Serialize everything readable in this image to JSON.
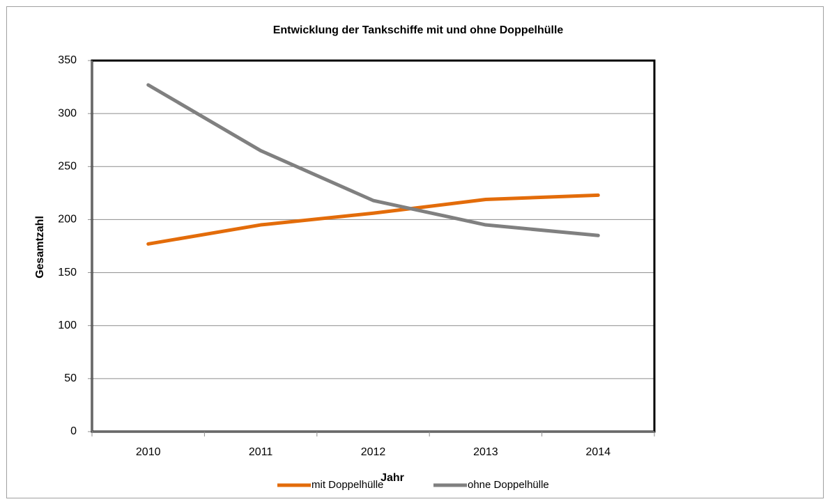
{
  "chart_data": {
    "type": "line",
    "title": "Entwicklung der Tankschiffe mit und ohne Doppelhülle",
    "x_label": "Jahr",
    "y_label": "Gesamtzahl",
    "categories": [
      "2010",
      "2011",
      "2012",
      "2013",
      "2014"
    ],
    "series": [
      {
        "name": "mit Doppelhülle",
        "color": "#e36c0a",
        "values": [
          177,
          195,
          206,
          219,
          223
        ]
      },
      {
        "name": "ohne Doppelhülle",
        "color": "#808080",
        "values": [
          327,
          265,
          218,
          195,
          185
        ]
      }
    ],
    "ylim": [
      0,
      350
    ],
    "yticks": [
      0,
      50,
      100,
      150,
      200,
      250,
      300,
      350
    ],
    "grid": true,
    "legend": "bottom"
  }
}
